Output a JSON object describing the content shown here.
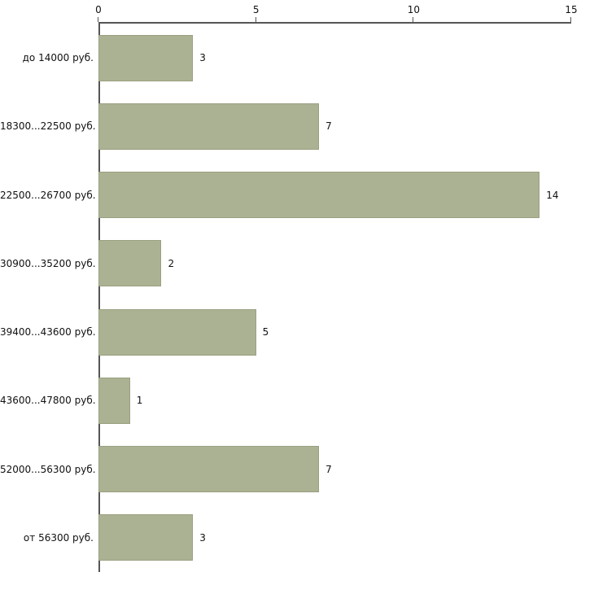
{
  "chart_data": {
    "type": "bar",
    "orientation": "horizontal",
    "title": "",
    "xlabel": "",
    "ylabel": "",
    "categories": [
      "до 14000 руб.",
      "18300...22500 руб.",
      "22500...26700 руб.",
      "30900...35200 руб.",
      "39400...43600 руб.",
      "43600...47800 руб.",
      "52000...56300 руб.",
      "от 56300 руб."
    ],
    "values": [
      3,
      7,
      14,
      2,
      5,
      1,
      7,
      3
    ],
    "value_labels": [
      "3",
      "7",
      "14",
      "2",
      "5",
      "1",
      "7",
      "3"
    ],
    "xlim": [
      0,
      15
    ],
    "x_ticks": [
      0,
      5,
      10,
      15
    ],
    "grid": false,
    "legend": false,
    "bar_color": "#abb293",
    "bar_border_color": "#99a07f",
    "axis_color": "#555555"
  }
}
